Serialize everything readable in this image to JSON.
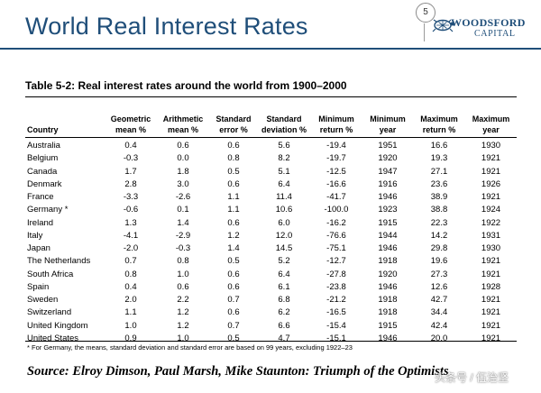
{
  "slide": {
    "title": "World Real Interest Rates",
    "page_number": "5"
  },
  "brand": {
    "logo_line1": "WOODSFORD",
    "logo_line2": "CAPITAL",
    "color": "#1f4e79"
  },
  "table": {
    "caption": "Table 5-2: Real interest rates around the world from 1900–2000",
    "headers": [
      {
        "l1": "",
        "l2": "Country"
      },
      {
        "l1": "Geometric",
        "l2": "mean %"
      },
      {
        "l1": "Arithmetic",
        "l2": "mean %"
      },
      {
        "l1": "Standard",
        "l2": "error %"
      },
      {
        "l1": "Standard",
        "l2": "deviation %"
      },
      {
        "l1": "Minimum",
        "l2": "return %"
      },
      {
        "l1": "Minimum",
        "l2": "year"
      },
      {
        "l1": "Maximum",
        "l2": "return %"
      },
      {
        "l1": "Maximum",
        "l2": "year"
      }
    ],
    "rows": [
      [
        "Australia",
        "0.4",
        "0.6",
        "0.6",
        "5.6",
        "-19.4",
        "1951",
        "16.6",
        "1930"
      ],
      [
        "Belgium",
        "-0.3",
        "0.0",
        "0.8",
        "8.2",
        "-19.7",
        "1920",
        "19.3",
        "1921"
      ],
      [
        "Canada",
        "1.7",
        "1.8",
        "0.5",
        "5.1",
        "-12.5",
        "1947",
        "27.1",
        "1921"
      ],
      [
        "Denmark",
        "2.8",
        "3.0",
        "0.6",
        "6.4",
        "-16.6",
        "1916",
        "23.6",
        "1926"
      ],
      [
        "France",
        "-3.3",
        "-2.6",
        "1.1",
        "11.4",
        "-41.7",
        "1946",
        "38.9",
        "1921"
      ],
      [
        "Germany *",
        "-0.6",
        "0.1",
        "1.1",
        "10.6",
        "-100.0",
        "1923",
        "38.8",
        "1924"
      ],
      [
        "Ireland",
        "1.3",
        "1.4",
        "0.6",
        "6.0",
        "-16.2",
        "1915",
        "22.3",
        "1922"
      ],
      [
        "Italy",
        "-4.1",
        "-2.9",
        "1.2",
        "12.0",
        "-76.6",
        "1944",
        "14.2",
        "1931"
      ],
      [
        "Japan",
        "-2.0",
        "-0.3",
        "1.4",
        "14.5",
        "-75.1",
        "1946",
        "29.8",
        "1930"
      ],
      [
        "The Netherlands",
        "0.7",
        "0.8",
        "0.5",
        "5.2",
        "-12.7",
        "1918",
        "19.6",
        "1921"
      ],
      [
        "South Africa",
        "0.8",
        "1.0",
        "0.6",
        "6.4",
        "-27.8",
        "1920",
        "27.3",
        "1921"
      ],
      [
        "Spain",
        "0.4",
        "0.6",
        "0.6",
        "6.1",
        "-23.8",
        "1946",
        "12.6",
        "1928"
      ],
      [
        "Sweden",
        "2.0",
        "2.2",
        "0.7",
        "6.8",
        "-21.2",
        "1918",
        "42.7",
        "1921"
      ],
      [
        "Switzerland",
        "1.1",
        "1.2",
        "0.6",
        "6.2",
        "-16.5",
        "1918",
        "34.4",
        "1921"
      ],
      [
        "United Kingdom",
        "1.0",
        "1.2",
        "0.7",
        "6.6",
        "-15.4",
        "1915",
        "42.4",
        "1921"
      ],
      [
        "United States",
        "0.9",
        "1.0",
        "0.5",
        "4.7",
        "-15.1",
        "1946",
        "20.0",
        "1921"
      ]
    ],
    "footnote": "* For Germany, the means, standard deviation and standard error are based on 99 years, excluding 1922–23"
  },
  "source": "Source: Elroy Dimson, Paul Marsh, Mike Staunton: Triumph of the Optimists",
  "watermark": "头条号 / 伍治坚"
}
